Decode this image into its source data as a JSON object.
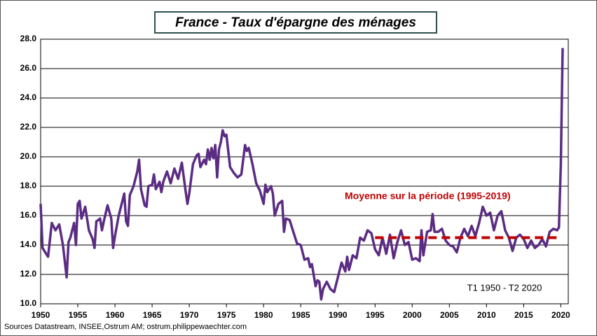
{
  "chart_data": {
    "type": "line",
    "title": "France  - Taux d'épargne des ménages",
    "annotations": [
      "T1 1950 - T2 2020"
    ],
    "source": "Sources Datastream, INSEE,Ostrum AM; ostrum.philippewaechter.com",
    "xlim": [
      1950,
      2021
    ],
    "xticks": [
      1950,
      1955,
      1960,
      1965,
      1970,
      1975,
      1980,
      1985,
      1990,
      1995,
      2000,
      2005,
      2010,
      2015,
      2020
    ],
    "ylim": [
      10,
      28
    ],
    "yticks": [
      {
        "value": 10,
        "label": "10.0"
      },
      {
        "value": 12,
        "label": "12.0"
      },
      {
        "value": 14,
        "label": "14.0"
      },
      {
        "value": 16,
        "label": "16.0"
      },
      {
        "value": 18,
        "label": "18.0"
      },
      {
        "value": 20,
        "label": "20.0"
      },
      {
        "value": 22,
        "label": "22.0"
      },
      {
        "value": 24,
        "label": "24.0"
      },
      {
        "value": 26,
        "label": "26.0"
      },
      {
        "value": 28,
        "label": "28.0"
      }
    ],
    "grid": true,
    "series": [
      {
        "name": "Taux d'épargne",
        "color": "#5b2c83",
        "line_style": "solid",
        "x": [
          1950,
          1950.25,
          1950.5,
          1951,
          1951.5,
          1952,
          1952.5,
          1953,
          1953.5,
          1953.75,
          1954,
          1954.5,
          1954.75,
          1955,
          1955.25,
          1955.5,
          1956,
          1956.5,
          1957,
          1957.25,
          1957.5,
          1958,
          1958.25,
          1958.5,
          1959,
          1959.5,
          1959.75,
          1960,
          1960.5,
          1961,
          1961.25,
          1961.5,
          1961.75,
          1962,
          1962.5,
          1963,
          1963.25,
          1963.5,
          1964,
          1964.25,
          1964.5,
          1965,
          1965.25,
          1965.5,
          1966,
          1966.25,
          1966.5,
          1967,
          1967.5,
          1968,
          1968.5,
          1969,
          1969.5,
          1969.75,
          1970,
          1970.5,
          1971,
          1971.25,
          1971.5,
          1972,
          1972.25,
          1972.5,
          1972.75,
          1973,
          1973.25,
          1973.5,
          1973.75,
          1974,
          1974.25,
          1974.5,
          1974.75,
          1975,
          1975.5,
          1976,
          1976.5,
          1977,
          1977.5,
          1977.75,
          1978,
          1978.5,
          1979,
          1979.5,
          1980,
          1980.25,
          1980.5,
          1981,
          1981.25,
          1981.5,
          1982,
          1982.5,
          1982.75,
          1983,
          1983.5,
          1984,
          1984.5,
          1985,
          1985.5,
          1986,
          1986.25,
          1986.5,
          1987,
          1987.25,
          1987.5,
          1987.75,
          1988,
          1988.5,
          1989,
          1989.5,
          1990,
          1990.5,
          1991,
          1991.25,
          1991.5,
          1992,
          1992.5,
          1993,
          1993.5,
          1994,
          1994.5,
          1995,
          1995.5,
          1996,
          1996.5,
          1997,
          1997.5,
          1998,
          1998.5,
          1999,
          1999.5,
          2000,
          2000.5,
          2001,
          2001.25,
          2001.5,
          2002,
          2002.5,
          2002.75,
          2003,
          2003.5,
          2004,
          2004.5,
          2005,
          2005.5,
          2006,
          2006.5,
          2007,
          2007.5,
          2008,
          2008.5,
          2009,
          2009.5,
          2010,
          2010.5,
          2011,
          2011.5,
          2012,
          2012.5,
          2013,
          2013.5,
          2014,
          2014.5,
          2015,
          2015.5,
          2016,
          2016.5,
          2017,
          2017.5,
          2018,
          2018.5,
          2019,
          2019.5,
          2019.75,
          2020,
          2020.25
        ],
        "values": [
          16.8,
          13.8,
          13.6,
          13.2,
          15.5,
          15.0,
          15.4,
          14.0,
          11.8,
          14.2,
          14.5,
          15.5,
          14.0,
          16.8,
          17.0,
          15.8,
          16.6,
          15.0,
          14.4,
          13.8,
          15.6,
          15.8,
          15.0,
          15.6,
          16.7,
          15.8,
          13.8,
          14.6,
          16.0,
          17.0,
          17.5,
          15.6,
          15.3,
          17.4,
          18.0,
          19.0,
          19.8,
          17.8,
          16.7,
          16.6,
          18.0,
          18.1,
          18.8,
          17.8,
          18.3,
          17.6,
          18.3,
          19.0,
          18.2,
          19.2,
          18.5,
          19.6,
          17.7,
          16.8,
          17.5,
          19.5,
          20.1,
          20.2,
          19.3,
          19.8,
          19.5,
          20.5,
          19.8,
          20.6,
          19.9,
          20.8,
          18.6,
          20.5,
          21.0,
          21.8,
          21.4,
          21.5,
          19.3,
          18.9,
          18.6,
          18.8,
          20.8,
          20.4,
          20.6,
          19.5,
          18.2,
          17.7,
          16.8,
          18.1,
          17.6,
          18.0,
          17.5,
          16.0,
          16.8,
          17.0,
          14.9,
          15.8,
          15.7,
          14.9,
          14.1,
          14.0,
          13.0,
          13.1,
          12.5,
          12.7,
          11.2,
          11.6,
          11.5,
          10.3,
          11.0,
          11.5,
          11.0,
          10.8,
          11.8,
          12.8,
          12.2,
          13.2,
          12.3,
          13.3,
          13.1,
          14.5,
          14.3,
          15.0,
          14.8,
          13.7,
          13.3,
          14.5,
          13.4,
          14.7,
          13.1,
          14.2,
          15.0,
          14.0,
          14.2,
          13.0,
          13.1,
          12.9,
          15.0,
          13.3,
          14.9,
          15.0,
          16.1,
          14.9,
          14.9,
          15.1,
          14.3,
          14.0,
          13.9,
          13.5,
          14.5,
          15.1,
          14.6,
          15.3,
          14.6,
          15.5,
          16.6,
          16.0,
          16.2,
          15.0,
          16.0,
          16.3,
          15.0,
          14.5,
          13.6,
          14.5,
          14.7,
          14.4,
          13.8,
          14.3,
          13.8,
          14.0,
          14.4,
          13.9,
          14.9,
          15.1,
          15.0,
          15.2,
          19.5,
          27.4
        ]
      },
      {
        "name": "Moyenne sur la période (1995-2019)",
        "color": "#c00000",
        "line_style": "dashed",
        "x": [
          1995,
          2020
        ],
        "values": [
          14.5,
          14.5
        ]
      }
    ]
  }
}
